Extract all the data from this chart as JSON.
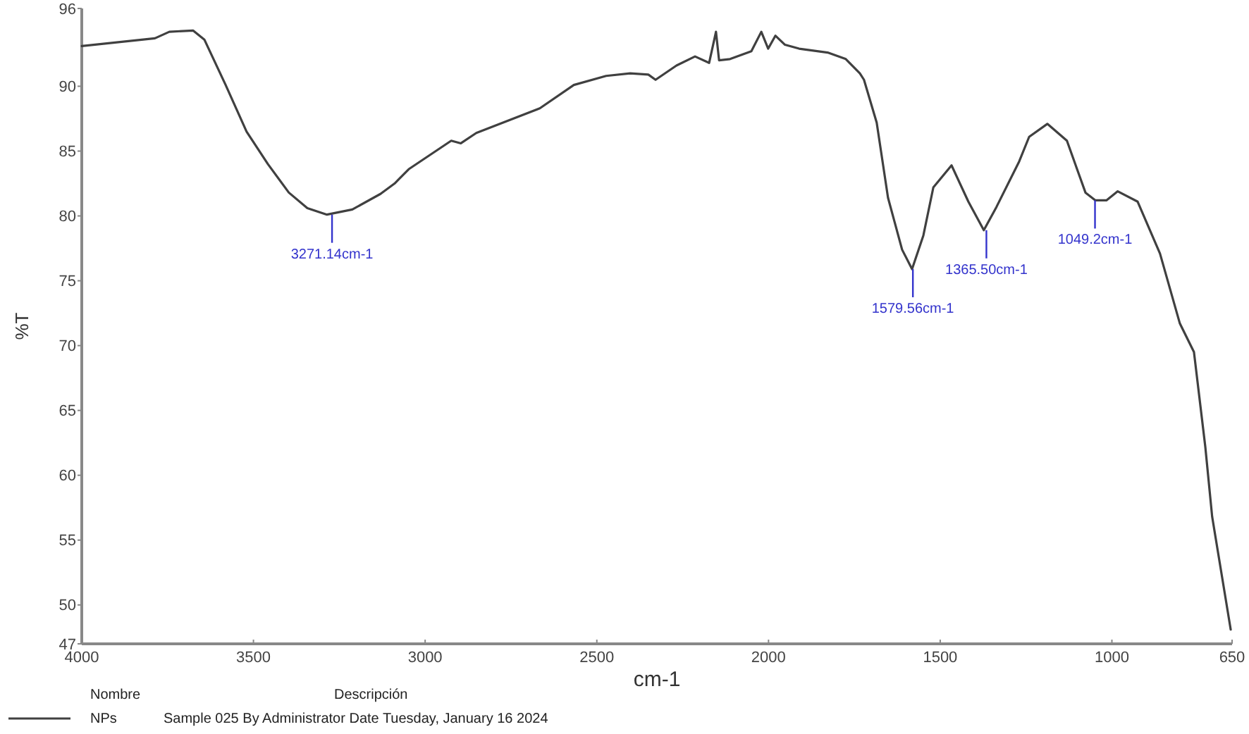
{
  "chart_data": {
    "type": "line",
    "xlabel": "cm-1",
    "ylabel": "%T",
    "legend_title": "Nombre",
    "legend": "bottom left",
    "grid": false,
    "marker": "none",
    "line_style": "solid",
    "xlim": [
      4000,
      650
    ],
    "xticks": [
      4000,
      3500,
      3000,
      2500,
      2000,
      1500,
      1000,
      650
    ],
    "ylim": [
      47,
      96
    ],
    "yticks": [
      47,
      50,
      55,
      60,
      65,
      70,
      75,
      80,
      85,
      90,
      96
    ],
    "series": [
      {
        "name": "NPs",
        "color": "#404040",
        "x": [
          4000,
          3787,
          3745,
          3676,
          3643,
          3581,
          3520,
          3458,
          3397,
          3343,
          3286,
          3212,
          3130,
          3089,
          3048,
          2924,
          2896,
          2851,
          2666,
          2567,
          2473,
          2403,
          2350,
          2329,
          2268,
          2214,
          2173,
          2153,
          2144,
          2112,
          2050,
          2021,
          2001,
          1980,
          1952,
          1911,
          1828,
          1775,
          1734,
          1722,
          1685,
          1652,
          1611,
          1582,
          1549,
          1520,
          1467,
          1418,
          1373,
          1336,
          1270,
          1241,
          1188,
          1131,
          1077,
          1048,
          1016,
          983,
          925,
          860,
          802,
          761,
          728,
          708,
          654
        ],
        "values": [
          93.1,
          93.7,
          94.2,
          94.3,
          93.6,
          90.1,
          86.5,
          84.0,
          81.8,
          80.6,
          80.1,
          80.5,
          81.7,
          82.5,
          83.6,
          85.8,
          85.6,
          86.4,
          88.3,
          90.1,
          90.8,
          91.0,
          90.9,
          90.5,
          91.6,
          92.3,
          91.8,
          94.2,
          92.0,
          92.1,
          92.7,
          94.2,
          92.9,
          93.9,
          93.2,
          92.9,
          92.6,
          92.1,
          91.0,
          90.5,
          87.2,
          81.4,
          77.4,
          75.9,
          78.5,
          82.2,
          83.9,
          81.1,
          78.9,
          80.7,
          84.2,
          86.1,
          87.1,
          85.8,
          81.8,
          81.2,
          81.2,
          81.9,
          81.1,
          77.1,
          71.7,
          69.5,
          62.2,
          56.8,
          48.1
        ]
      }
    ],
    "annotations": [
      {
        "text": "3271.14cm-1",
        "x": 3271.14,
        "y": 80.1
      },
      {
        "text": "1579.56cm-1",
        "x": 1579.56,
        "y": 75.9
      },
      {
        "text": "1365.50cm-1",
        "x": 1365.5,
        "y": 78.9
      },
      {
        "text": "1049.2cm-1",
        "x": 1049.2,
        "y": 81.2
      },
      "Descripción",
      "Sample 025 By Administrator Date Tuesday, January 16 2024"
    ]
  }
}
